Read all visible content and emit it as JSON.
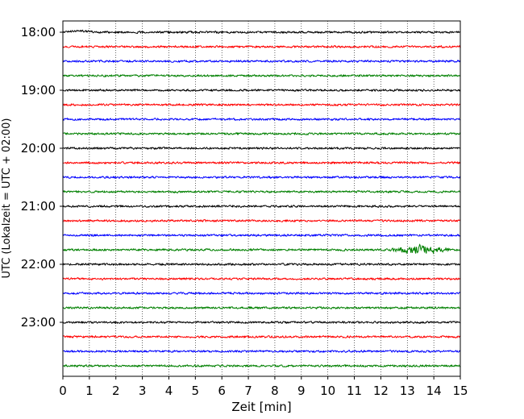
{
  "chart_data": {
    "type": "line",
    "title": "",
    "xlabel": "Zeit  [min]",
    "ylabel": "UTC (Lokalzeit = UTC + 02:00)",
    "xlim": [
      0,
      15
    ],
    "x_ticks": [
      "0",
      "1",
      "2",
      "3",
      "4",
      "5",
      "6",
      "7",
      "8",
      "9",
      "10",
      "11",
      "12",
      "13",
      "14",
      "15"
    ],
    "y_ticks": [
      "18:00",
      "19:00",
      "20:00",
      "21:00",
      "22:00",
      "23:00"
    ],
    "grid": "vertical-dotted",
    "trace_interval_minutes": 15,
    "trace_count": 24,
    "trace_colors": [
      "#000000",
      "#ff0000",
      "#0000ff",
      "#008000"
    ],
    "events": [
      {
        "trace": 15,
        "start_min": 12.2,
        "end_min": 14.6,
        "peak_min": 13.5
      }
    ]
  }
}
